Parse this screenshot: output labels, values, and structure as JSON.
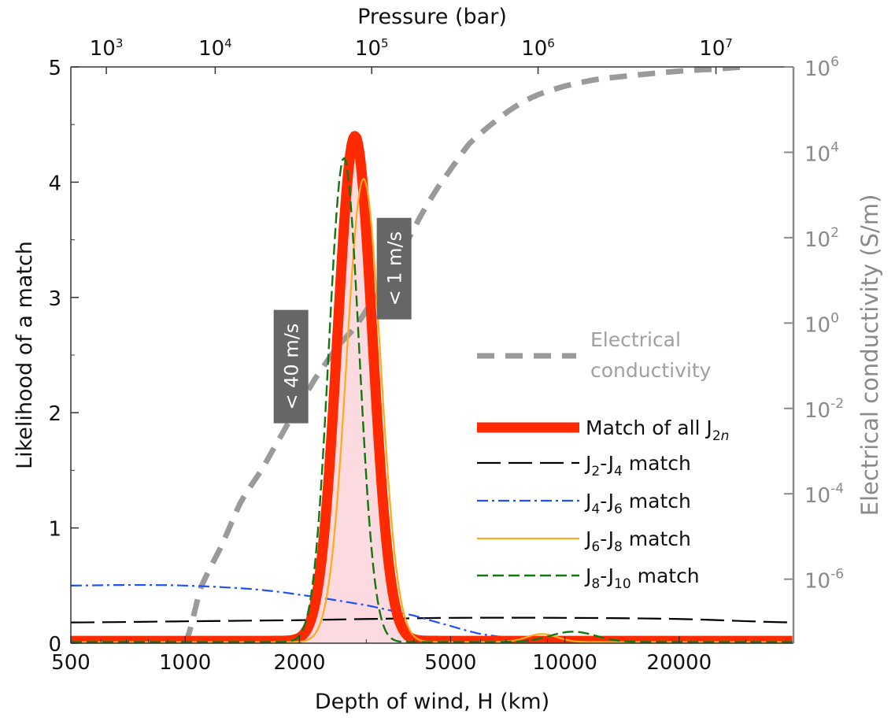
{
  "chart_data": {
    "type": "line",
    "x_axis": {
      "label": "Depth of wind, H (km)",
      "scale": "log",
      "range": [
        500,
        40000
      ],
      "ticks": [
        500,
        1000,
        2000,
        5000,
        10000,
        20000
      ],
      "tick_labels": [
        "500",
        "1000",
        "2000",
        "5000",
        "10000",
        "20000"
      ]
    },
    "y_axis": {
      "label": "Likelihood of a match",
      "range": [
        0,
        5
      ],
      "ticks": [
        0,
        1,
        2,
        3,
        4,
        5
      ],
      "tick_labels": [
        "0",
        "1",
        "2",
        "3",
        "4",
        "5"
      ]
    },
    "top_axis": {
      "label": "Pressure (bar)",
      "ticks": [
        {
          "base": "10",
          "exp": "3",
          "depth_km": 620
        },
        {
          "base": "10",
          "exp": "4",
          "depth_km": 1200
        },
        {
          "base": "10",
          "exp": "5",
          "depth_km": 3100
        },
        {
          "base": "10",
          "exp": "6",
          "depth_km": 8500
        },
        {
          "base": "10",
          "exp": "7",
          "depth_km": 25000
        }
      ]
    },
    "right_axis": {
      "label": "Electrical conductivity (S/m)",
      "scale": "log",
      "range_log10": [
        -7.5,
        6
      ],
      "ticks": [
        {
          "base": "10",
          "exp": "6",
          "log": 6
        },
        {
          "base": "10",
          "exp": "4",
          "log": 4
        },
        {
          "base": "10",
          "exp": "2",
          "log": 2
        },
        {
          "base": "10",
          "exp": "0",
          "log": 0
        },
        {
          "base": "10",
          "exp": "-2",
          "log": -2
        },
        {
          "base": "10",
          "exp": "-4",
          "log": -4
        },
        {
          "base": "10",
          "exp": "-6",
          "log": -6
        }
      ]
    },
    "series": [
      {
        "name": "Electrical conductivity",
        "color": "#9a9a9a",
        "style": "dashed-thick",
        "axis": "right",
        "x": [
          1000,
          1100,
          1250,
          1400,
          1600,
          1800,
          2000,
          2200,
          2500,
          2800,
          3100,
          3500,
          4000,
          4500,
          5000,
          5600,
          6500,
          7500,
          8500,
          10000,
          12000,
          15000,
          20000,
          25000,
          30000
        ],
        "y_log10": [
          -7.5,
          -6.2,
          -5.2,
          -4.2,
          -3.4,
          -2.6,
          -1.9,
          -1.3,
          -0.6,
          -0.1,
          0.5,
          1.2,
          2.2,
          3.0,
          3.6,
          4.2,
          4.7,
          5.1,
          5.35,
          5.55,
          5.7,
          5.8,
          5.9,
          5.95,
          6.0
        ]
      },
      {
        "name": "Match of all J2n",
        "color": "#ff2a00",
        "style": "solid-thick",
        "gaussian": {
          "center": 2800,
          "sigma_log10": 0.046,
          "amplitude": 4.38,
          "baseline": 0.02
        }
      },
      {
        "name": "J2-J4 match",
        "color": "#000000",
        "style": "long-dash",
        "x": [
          500,
          1000,
          2000,
          3000,
          5000,
          10000,
          20000,
          40000
        ],
        "y": [
          0.18,
          0.19,
          0.2,
          0.21,
          0.22,
          0.22,
          0.21,
          0.18
        ]
      },
      {
        "name": "J4-J6 match",
        "color": "#1e50ff",
        "style": "dash-dot",
        "x": [
          500,
          700,
          1000,
          1500,
          2000,
          3000,
          4000,
          5000,
          6000,
          8000,
          10000,
          15000,
          20000,
          40000
        ],
        "y": [
          0.5,
          0.505,
          0.5,
          0.47,
          0.42,
          0.33,
          0.24,
          0.15,
          0.08,
          0.03,
          0.015,
          0.01,
          0.01,
          0.01
        ]
      },
      {
        "name": "J6-J8 match",
        "color": "#ffaa1a",
        "style": "solid",
        "gaussian": {
          "center": 2950,
          "sigma_log10": 0.045,
          "amplitude": 4.02,
          "baseline": 0.01
        },
        "bump": {
          "center": 8700,
          "sigma_log10": 0.04,
          "amplitude": 0.07
        }
      },
      {
        "name": "J8-J10 match",
        "color": "#117711",
        "style": "dashed",
        "gaussian": {
          "center": 2620,
          "sigma_log10": 0.04,
          "amplitude": 4.2,
          "baseline": 0.01
        },
        "bump": {
          "center": 10500,
          "sigma_log10": 0.06,
          "amplitude": 0.09
        }
      }
    ],
    "legend": {
      "placement": "right",
      "entries": [
        {
          "label_main": "Match of all J",
          "label_sub": "2n",
          "label_sub_italic": "n",
          "series": 1
        },
        {
          "parts": [
            "J",
            "2",
            "-J",
            "4",
            " match"
          ],
          "series": 2
        },
        {
          "parts": [
            "J",
            "4",
            "-J",
            "6",
            " match"
          ],
          "series": 3
        },
        {
          "parts": [
            "J",
            "6",
            "-J",
            "8",
            " match"
          ],
          "series": 4
        },
        {
          "parts": [
            "J",
            "8",
            "-J",
            "10",
            " match"
          ],
          "series": 5
        }
      ],
      "conductivity_label": [
        "Electrical",
        "conductivity"
      ]
    },
    "annotations": [
      {
        "text": "< 40 m/s",
        "depth_km": 1900,
        "value": 2.4
      },
      {
        "text": "< 1 m/s",
        "depth_km": 3550,
        "value": 3.25
      }
    ],
    "grid": false
  }
}
